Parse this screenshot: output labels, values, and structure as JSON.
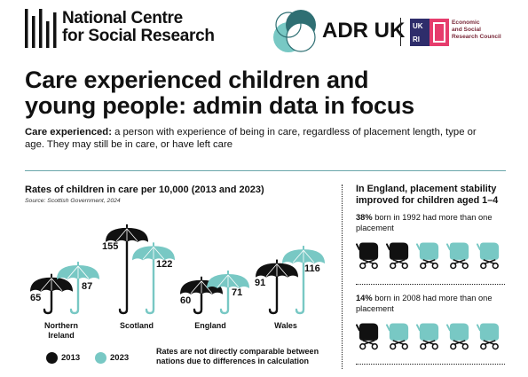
{
  "header": {
    "ncsr_line1": "National Centre",
    "ncsr_line2": "for Social Research",
    "adr_text": "ADR UK",
    "ukri_label": "UKRI",
    "esrc_line1": "Economic",
    "esrc_line2": "and Social",
    "esrc_line3": "Research Council"
  },
  "title": {
    "line1": "Care experienced children and",
    "line2": "young people: admin data in focus"
  },
  "intro": {
    "term": "Care experienced:",
    "definition": " a person with experience of being in care, regardless of placement length, type or age. They may still be in care, or have left care"
  },
  "chart": {
    "title": "Rates of children in care per 10,000 (2013 and 2023)",
    "source": "Source: Scottish Government, 2024",
    "note": "Rates are not directly comparable between nations due to differences in calculation",
    "legend": {
      "label_2013": "2013",
      "label_2023": "2023"
    }
  },
  "chart_data": {
    "type": "bar",
    "title": "Rates of children in care per 10,000 (2013 and 2023)",
    "categories": [
      "Northern Ireland",
      "Scotland",
      "England",
      "Wales"
    ],
    "series": [
      {
        "name": "2013",
        "values": [
          65,
          155,
          60,
          91
        ]
      },
      {
        "name": "2023",
        "values": [
          87,
          122,
          71,
          116
        ]
      }
    ]
  },
  "nations": {
    "ni_line1": "Northern",
    "ni_line2": "Ireland",
    "scotland": "Scotland",
    "england": "England",
    "wales": "Wales"
  },
  "right_panel": {
    "title": "In England, placement stability improved for children aged 1–4",
    "stat1_bold": "38%",
    "stat1_rest": " born in 1992 had more than one placement",
    "stat2_bold": "14%",
    "stat2_rest": " born in 2008 had more than one placement"
  },
  "colors": {
    "black": "#111111",
    "teal": "#78c8c4",
    "divider": "#6aa6aa"
  }
}
